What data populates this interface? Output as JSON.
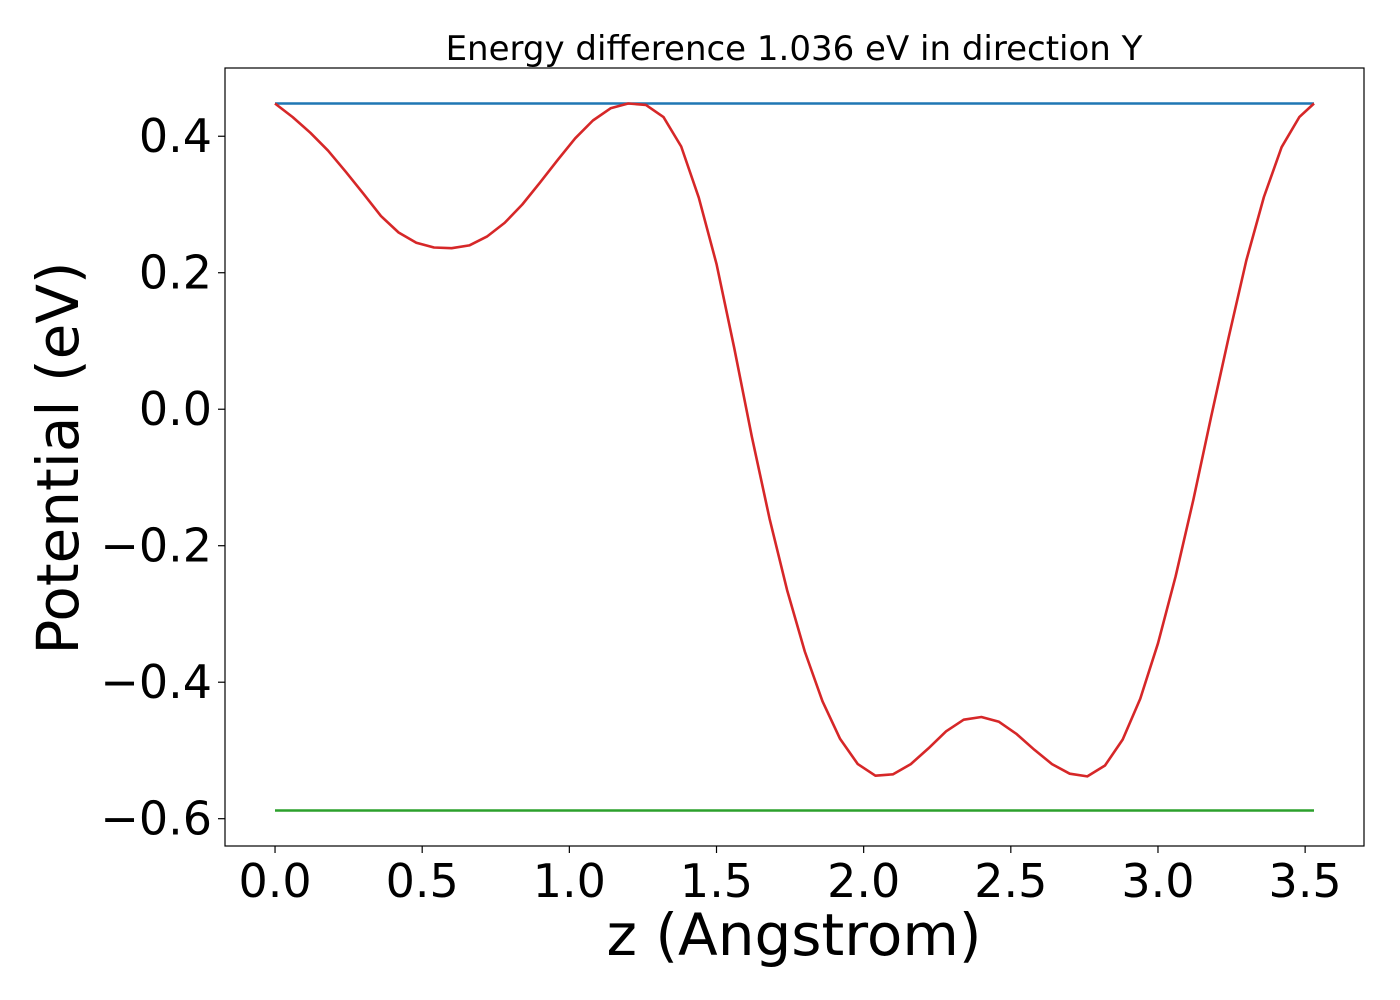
{
  "chart_data": {
    "type": "line",
    "title": "Energy difference 1.036 eV in direction Y",
    "xlabel": "z (Angstrom)",
    "ylabel": "Potential (eV)",
    "xlim": [
      -0.17,
      3.7
    ],
    "ylim": [
      -0.64,
      0.5
    ],
    "xticks": [
      0.0,
      0.5,
      1.0,
      1.5,
      2.0,
      2.5,
      3.0,
      3.5
    ],
    "xtick_labels": [
      "0.0",
      "0.5",
      "1.0",
      "1.5",
      "2.0",
      "2.5",
      "3.0",
      "3.5"
    ],
    "yticks": [
      0.4,
      0.2,
      0.0,
      -0.2,
      -0.4,
      -0.6
    ],
    "ytick_labels": [
      "0.4",
      "0.2",
      "0.0",
      "−0.2",
      "−0.4",
      "−0.6"
    ],
    "grid": false,
    "series": [
      {
        "color": "#1f77b4",
        "x": [
          0.0,
          3.53
        ],
        "y": [
          0.448,
          0.448
        ]
      },
      {
        "color": "#d62728",
        "x": [
          0.0,
          0.06,
          0.12,
          0.18,
          0.24,
          0.3,
          0.36,
          0.42,
          0.48,
          0.54,
          0.6,
          0.66,
          0.72,
          0.78,
          0.84,
          0.9,
          0.96,
          1.02,
          1.08,
          1.14,
          1.2,
          1.26,
          1.32,
          1.38,
          1.44,
          1.5,
          1.56,
          1.62,
          1.68,
          1.74,
          1.8,
          1.86,
          1.92,
          1.98,
          2.04,
          2.1,
          2.16,
          2.22,
          2.28,
          2.34,
          2.4,
          2.46,
          2.52,
          2.58,
          2.64,
          2.7,
          2.76,
          2.82,
          2.88,
          2.94,
          3.0,
          3.06,
          3.12,
          3.18,
          3.24,
          3.3,
          3.36,
          3.42,
          3.48,
          3.53
        ],
        "y": [
          0.448,
          0.428,
          0.405,
          0.379,
          0.348,
          0.316,
          0.283,
          0.259,
          0.244,
          0.237,
          0.236,
          0.24,
          0.253,
          0.273,
          0.3,
          0.332,
          0.365,
          0.397,
          0.423,
          0.441,
          0.448,
          0.446,
          0.428,
          0.385,
          0.31,
          0.213,
          0.09,
          -0.04,
          -0.16,
          -0.265,
          -0.355,
          -0.428,
          -0.483,
          -0.52,
          -0.537,
          -0.535,
          -0.52,
          -0.497,
          -0.472,
          -0.455,
          -0.451,
          -0.458,
          -0.476,
          -0.499,
          -0.52,
          -0.534,
          -0.538,
          -0.522,
          -0.484,
          -0.424,
          -0.343,
          -0.245,
          -0.133,
          -0.012,
          0.105,
          0.218,
          0.311,
          0.384,
          0.428,
          0.448
        ]
      },
      {
        "color": "#2ca02c",
        "x": [
          0.0,
          3.53
        ],
        "y": [
          -0.588,
          -0.588
        ]
      }
    ]
  }
}
